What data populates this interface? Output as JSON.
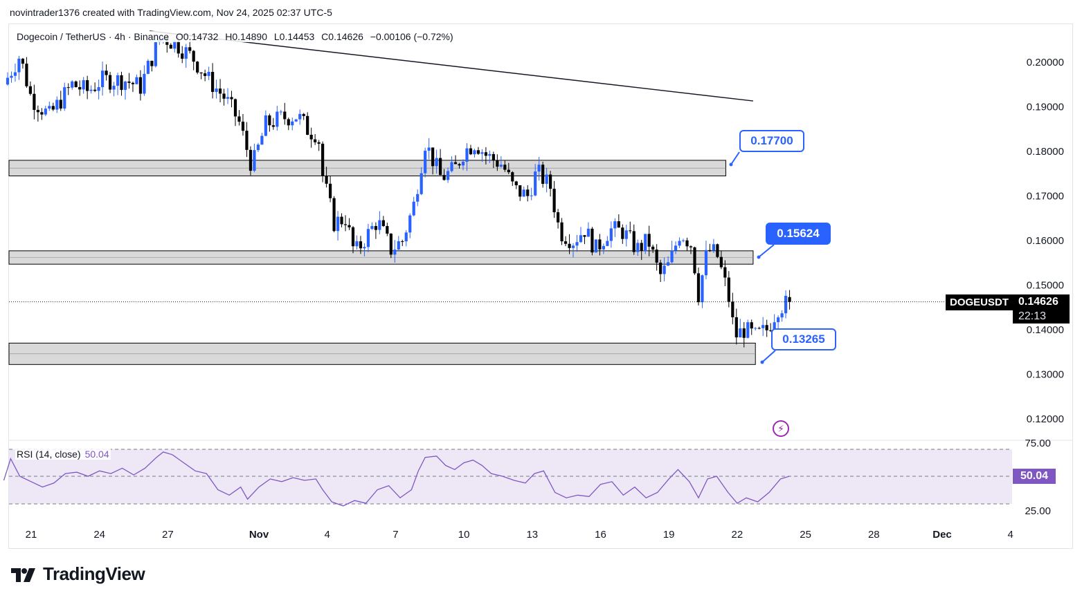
{
  "header": {
    "attribution": "novintrader1376 created with TradingView.com, Nov 24, 2025 02:37 UTC-5"
  },
  "legend": {
    "pair": "Dogecoin / TetherUS · 4h · Binance",
    "open": "O0.14732",
    "high": "H0.14890",
    "low": "L0.14453",
    "close": "C0.14626",
    "change": "−0.00106 (−0.72%)"
  },
  "rsi_legend": {
    "label": "RSI (14, close)",
    "value": "50.04"
  },
  "callouts": {
    "upper": "0.17700",
    "middle": "0.15624",
    "lower": "0.13265"
  },
  "price_scale": {
    "symbol": "DOGEUSDT",
    "last_price": "0.14626",
    "countdown": "22:13",
    "rsi_value": "50.04"
  },
  "footer": {
    "brand": "TradingView"
  },
  "colors": {
    "up_candle": "#2962ff",
    "down_candle": "#000000",
    "rsi_line": "#7e57c2",
    "rsi_band": "#ede7f6",
    "zone_fill": "#d9d9d9",
    "accent": "#2962ff"
  },
  "icons": {
    "flash": "flash-icon",
    "logo": "tradingview-logo-icon"
  },
  "chart_data": [
    {
      "type": "candlestick",
      "symbol": "DOGEUSDT",
      "timeframe": "4h",
      "ylim": [
        0.115,
        0.2065
      ],
      "y_ticks": [
        "0.20000",
        "0.19000",
        "0.18000",
        "0.17000",
        "0.16000",
        "0.15000",
        "0.14000",
        "0.13000",
        "0.12000"
      ],
      "x_ticks": [
        "21",
        "24",
        "27",
        "Nov",
        "4",
        "7",
        "10",
        "13",
        "16",
        "19",
        "22",
        "25",
        "28",
        "Dec",
        "4"
      ],
      "x_tick_days": [
        -10,
        -7,
        -4,
        0,
        3,
        6,
        9,
        12,
        15,
        18,
        21,
        24,
        27,
        30,
        33
      ],
      "last_price": 0.14626,
      "zones": [
        {
          "from_day": -11,
          "to_day": 20.5,
          "low": 0.1745,
          "high": 0.178
        },
        {
          "from_day": -11,
          "to_day": 21.7,
          "low": 0.1547,
          "high": 0.1577
        },
        {
          "from_day": -11,
          "to_day": 21.8,
          "low": 0.1322,
          "high": 0.137
        }
      ],
      "trendline": {
        "from": [
          -4.8,
          0.207
        ],
        "to": [
          21.7,
          0.1913
        ]
      },
      "series": [
        {
          "name": "price",
          "anchors": [
            [
              -11.2,
              0.195
            ],
            [
              -10.5,
              0.2015
            ],
            [
              -10.0,
              0.192
            ],
            [
              -9.2,
              0.188
            ],
            [
              -8.2,
              0.195
            ],
            [
              -7.5,
              0.1935
            ],
            [
              -6.9,
              0.196
            ],
            [
              -5.9,
              0.196
            ],
            [
              -5.2,
              0.1945
            ],
            [
              -4.7,
              0.201
            ],
            [
              -4.3,
              0.2058
            ],
            [
              -3.6,
              0.204
            ],
            [
              -2.9,
              0.201
            ],
            [
              -2.2,
              0.196
            ],
            [
              -1.5,
              0.192
            ],
            [
              -0.9,
              0.187
            ],
            [
              -0.3,
              0.1765
            ],
            [
              0.3,
              0.186
            ],
            [
              1.0,
              0.1875
            ],
            [
              1.7,
              0.188
            ],
            [
              2.2,
              0.1845
            ],
            [
              2.6,
              0.184
            ],
            [
              2.8,
              0.1745
            ],
            [
              3.3,
              0.164
            ],
            [
              3.8,
              0.165
            ],
            [
              4.2,
              0.157
            ],
            [
              4.6,
              0.16
            ],
            [
              5.2,
              0.1645
            ],
            [
              5.8,
              0.158
            ],
            [
              6.3,
              0.16
            ],
            [
              6.8,
              0.168
            ],
            [
              7.3,
              0.182
            ],
            [
              8.0,
              0.174
            ],
            [
              8.6,
              0.176
            ],
            [
              9.0,
              0.18
            ],
            [
              9.5,
              0.182
            ],
            [
              10.0,
              0.179
            ],
            [
              10.7,
              0.177
            ],
            [
              11.2,
              0.1715
            ],
            [
              11.8,
              0.17
            ],
            [
              12.2,
              0.1755
            ],
            [
              12.8,
              0.172
            ],
            [
              13.2,
              0.162
            ],
            [
              13.8,
              0.16
            ],
            [
              14.3,
              0.1625
            ],
            [
              14.8,
              0.158
            ],
            [
              15.4,
              0.1625
            ],
            [
              16.0,
              0.162
            ],
            [
              16.6,
              0.158
            ],
            [
              17.1,
              0.16
            ],
            [
              17.6,
              0.152
            ],
            [
              18.0,
              0.1545
            ],
            [
              18.5,
              0.162
            ],
            [
              19.0,
              0.159
            ],
            [
              19.3,
              0.148
            ],
            [
              19.7,
              0.158
            ],
            [
              20.1,
              0.157
            ],
            [
              20.6,
              0.148
            ],
            [
              20.9,
              0.1385
            ],
            [
              21.3,
              0.14
            ],
            [
              21.8,
              0.1385
            ],
            [
              22.3,
              0.14
            ],
            [
              22.8,
              0.145
            ],
            [
              23.3,
              0.1462
            ]
          ]
        }
      ]
    },
    {
      "type": "line",
      "title": "RSI (14, close)",
      "ylim": [
        20,
        76
      ],
      "y_ticks": [
        "75.00",
        "25.00"
      ],
      "bands": {
        "upper": 70,
        "middle": 50,
        "lower": 30
      },
      "last_value": 50.04,
      "series": [
        {
          "name": "RSI",
          "points": [
            [
              -11.2,
              47
            ],
            [
              -10.9,
              63
            ],
            [
              -10.5,
              50
            ],
            [
              -10.0,
              46
            ],
            [
              -9.5,
              42
            ],
            [
              -9.0,
              45
            ],
            [
              -8.5,
              52
            ],
            [
              -8.0,
              53
            ],
            [
              -7.5,
              50
            ],
            [
              -7.0,
              54
            ],
            [
              -6.5,
              52
            ],
            [
              -6.0,
              56
            ],
            [
              -5.5,
              51
            ],
            [
              -5.0,
              56
            ],
            [
              -4.5,
              64
            ],
            [
              -4.2,
              68
            ],
            [
              -3.8,
              66
            ],
            [
              -3.3,
              60
            ],
            [
              -2.8,
              54
            ],
            [
              -2.3,
              52
            ],
            [
              -1.8,
              40
            ],
            [
              -1.3,
              36
            ],
            [
              -0.8,
              42
            ],
            [
              -0.5,
              33
            ],
            [
              0.0,
              42
            ],
            [
              0.5,
              48
            ],
            [
              1.0,
              46
            ],
            [
              1.5,
              49
            ],
            [
              2.0,
              47
            ],
            [
              2.5,
              48
            ],
            [
              2.8,
              40
            ],
            [
              3.2,
              31
            ],
            [
              3.7,
              28
            ],
            [
              4.2,
              32
            ],
            [
              4.7,
              30
            ],
            [
              5.2,
              40
            ],
            [
              5.7,
              43
            ],
            [
              6.2,
              34
            ],
            [
              6.7,
              40
            ],
            [
              7.0,
              54
            ],
            [
              7.3,
              64
            ],
            [
              7.8,
              65
            ],
            [
              8.2,
              58
            ],
            [
              8.6,
              55
            ],
            [
              9.0,
              60
            ],
            [
              9.4,
              62
            ],
            [
              9.8,
              58
            ],
            [
              10.2,
              52
            ],
            [
              10.7,
              50
            ],
            [
              11.2,
              47
            ],
            [
              11.7,
              45
            ],
            [
              12.1,
              52
            ],
            [
              12.5,
              54
            ],
            [
              13.0,
              38
            ],
            [
              13.5,
              34
            ],
            [
              14.0,
              36
            ],
            [
              14.5,
              35
            ],
            [
              15.0,
              44
            ],
            [
              15.5,
              46
            ],
            [
              16.0,
              36
            ],
            [
              16.5,
              42
            ],
            [
              17.0,
              34
            ],
            [
              17.5,
              38
            ],
            [
              18.0,
              48
            ],
            [
              18.4,
              55
            ],
            [
              18.9,
              46
            ],
            [
              19.3,
              34
            ],
            [
              19.7,
              48
            ],
            [
              20.1,
              50
            ],
            [
              20.6,
              38
            ],
            [
              21.0,
              30
            ],
            [
              21.4,
              34
            ],
            [
              21.9,
              31
            ],
            [
              22.4,
              38
            ],
            [
              22.9,
              48
            ],
            [
              23.3,
              50.04
            ]
          ]
        }
      ]
    }
  ]
}
